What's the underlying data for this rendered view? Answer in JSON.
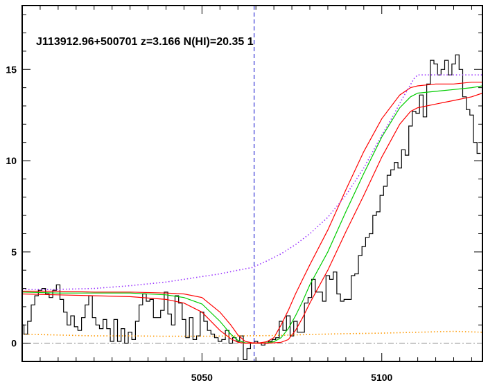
{
  "chart_data": {
    "type": "line",
    "title": "J113912.96+500701 z=3.166 N(HI)=20.35 1",
    "xlabel": "",
    "ylabel": "",
    "xlim": [
      5000,
      5128
    ],
    "ylim": [
      -1,
      18.5
    ],
    "x_ticks": [
      5050,
      5100
    ],
    "y_ticks": [
      0,
      5,
      10,
      15
    ],
    "grid": false,
    "vline": {
      "x": 5064.5,
      "color": "#0000cc",
      "style": "dashed"
    },
    "zero_line": {
      "y": 0,
      "color": "#888888",
      "style": "dash-dot"
    },
    "series": [
      {
        "type": "step",
        "color": "#000000",
        "x": [
          5000,
          5001,
          5002,
          5003,
          5004,
          5005,
          5006,
          5007,
          5008,
          5009,
          5010,
          5011,
          5012,
          5013,
          5014,
          5015,
          5016,
          5017,
          5018,
          5019,
          5020,
          5021,
          5022,
          5023,
          5024,
          5025,
          5026,
          5027,
          5028,
          5029,
          5030,
          5031,
          5032,
          5033,
          5034,
          5035,
          5036,
          5037,
          5038,
          5039,
          5040,
          5041,
          5042,
          5043,
          5044,
          5045,
          5046,
          5047,
          5048,
          5049,
          5050,
          5051,
          5052,
          5053,
          5054,
          5055,
          5056,
          5057,
          5058,
          5059,
          5060,
          5061,
          5062,
          5063,
          5064,
          5065,
          5066,
          5067,
          5068,
          5069,
          5070,
          5071,
          5072,
          5073,
          5074,
          5075,
          5076,
          5077,
          5078,
          5079,
          5080,
          5081,
          5082,
          5083,
          5084,
          5085,
          5086,
          5087,
          5088,
          5089,
          5090,
          5091,
          5092,
          5093,
          5094,
          5095,
          5096,
          5097,
          5098,
          5099,
          5100,
          5101,
          5102,
          5103,
          5104,
          5105,
          5106,
          5107,
          5108,
          5109,
          5110,
          5111,
          5112,
          5113,
          5114,
          5115,
          5116,
          5117,
          5118,
          5119,
          5120,
          5121,
          5122,
          5123,
          5124,
          5125,
          5126,
          5127
        ],
        "values": [
          1.0,
          0.5,
          1.2,
          2.1,
          2.6,
          2.9,
          3.0,
          2.7,
          2.5,
          2.9,
          3.2,
          2.4,
          1.7,
          1.0,
          1.5,
          0.9,
          0.7,
          1.4,
          2.1,
          2.6,
          1.4,
          1.0,
          0.8,
          1.3,
          0.8,
          0.1,
          1.3,
          0.1,
          0.8,
          0.0,
          0.6,
          0.2,
          1.2,
          2.1,
          2.7,
          2.3,
          2.4,
          1.4,
          1.4,
          1.8,
          2.8,
          1.6,
          1.0,
          2.6,
          2.2,
          1.3,
          0.3,
          1.4,
          0.2,
          0.4,
          1.7,
          1.2,
          0.7,
          0.5,
          0.3,
          0.1,
          0.2,
          0.7,
          0.0,
          0.3,
          0.1,
          0.4,
          -0.9,
          -0.3,
          0.0,
          0.1,
          0.0,
          -0.1,
          0.0,
          0.1,
          0.2,
          0.3,
          1.2,
          0.7,
          1.5,
          0.4,
          1.2,
          0.6,
          0.6,
          2.2,
          2.5,
          3.5,
          2.8,
          2.8,
          2.3,
          3.7,
          3.5,
          3.9,
          2.7,
          2.3,
          2.4,
          2.4,
          3.7,
          3.8,
          4.8,
          5.3,
          5.8,
          6.0,
          7.0,
          7.2,
          8.1,
          8.6,
          9.2,
          9.5,
          9.9,
          9.6,
          10.6,
          10.3,
          11.9,
          12.7,
          12.6,
          13.6,
          12.4,
          14.2,
          15.5,
          15.3,
          14.7,
          15.0,
          15.5,
          14.7,
          15.3,
          15.8,
          15.0,
          13.5,
          12.8,
          12.5,
          11.0,
          10.4
        ]
      },
      {
        "type": "line",
        "color": "#00cc00",
        "x": [
          5000,
          5010,
          5020,
          5030,
          5040,
          5045,
          5050,
          5055,
          5058,
          5060,
          5062,
          5064,
          5066,
          5068,
          5070,
          5072,
          5074,
          5076,
          5078,
          5080,
          5085,
          5090,
          5095,
          5100,
          5105,
          5108,
          5110,
          5115,
          5120,
          5125,
          5128
        ],
        "values": [
          2.8,
          2.75,
          2.75,
          2.75,
          2.65,
          2.5,
          2.15,
          1.2,
          0.5,
          0.15,
          0.02,
          0.0,
          0.0,
          0.02,
          0.08,
          0.3,
          0.8,
          1.5,
          2.3,
          3.2,
          5.0,
          7.2,
          9.3,
          11.3,
          12.9,
          13.5,
          13.7,
          13.8,
          13.9,
          14.0,
          14.1
        ]
      },
      {
        "type": "line",
        "color": "#ff0000",
        "x": [
          5000,
          5010,
          5020,
          5030,
          5040,
          5045,
          5050,
          5055,
          5058,
          5060,
          5062,
          5064,
          5066,
          5068,
          5070,
          5072,
          5074,
          5076,
          5078,
          5080,
          5085,
          5090,
          5095,
          5100,
          5105,
          5108,
          5110,
          5115,
          5120,
          5125,
          5128
        ],
        "values": [
          2.85,
          2.85,
          2.8,
          2.8,
          2.75,
          2.7,
          2.5,
          1.7,
          1.0,
          0.45,
          0.1,
          0.02,
          0.02,
          0.08,
          0.3,
          1.0,
          1.8,
          2.7,
          3.5,
          4.3,
          6.2,
          8.4,
          10.5,
          12.3,
          13.6,
          14.0,
          14.1,
          14.2,
          14.2,
          14.3,
          14.3
        ]
      },
      {
        "type": "line",
        "color": "#ff0000",
        "x": [
          5000,
          5010,
          5020,
          5030,
          5040,
          5045,
          5050,
          5055,
          5058,
          5060,
          5062,
          5064,
          5066,
          5068,
          5070,
          5072,
          5074,
          5076,
          5078,
          5080,
          5085,
          5090,
          5095,
          5100,
          5105,
          5108,
          5110,
          5115,
          5120,
          5125,
          5128
        ],
        "values": [
          2.7,
          2.65,
          2.6,
          2.55,
          2.4,
          2.2,
          1.7,
          0.7,
          0.25,
          0.05,
          0.0,
          0.0,
          0.0,
          0.0,
          0.02,
          0.05,
          0.2,
          0.7,
          1.4,
          2.2,
          4.0,
          6.1,
          8.1,
          10.2,
          12.0,
          12.7,
          12.9,
          13.1,
          13.3,
          13.5,
          13.7
        ]
      },
      {
        "type": "line",
        "color": "#9933ff",
        "style": "dotted",
        "x": [
          5000,
          5010,
          5020,
          5030,
          5040,
          5045,
          5050,
          5055,
          5060,
          5064,
          5068,
          5072,
          5076,
          5080,
          5085,
          5090,
          5095,
          5100,
          5103,
          5106,
          5109,
          5110,
          5115,
          5120,
          5125,
          5128
        ],
        "values": [
          2.95,
          2.95,
          3.0,
          3.15,
          3.35,
          3.5,
          3.65,
          3.8,
          4.0,
          4.15,
          4.5,
          4.9,
          5.4,
          6.0,
          6.9,
          8.1,
          9.6,
          11.4,
          12.4,
          13.5,
          14.5,
          14.7,
          14.7,
          14.7,
          14.7,
          14.7
        ]
      },
      {
        "type": "line",
        "color": "#ff9900",
        "style": "dotted",
        "x": [
          5000,
          5010,
          5020,
          5030,
          5040,
          5050,
          5060,
          5070,
          5080,
          5090,
          5100,
          5110,
          5120,
          5128
        ],
        "values": [
          0.5,
          0.45,
          0.4,
          0.4,
          0.38,
          0.38,
          0.4,
          0.42,
          0.48,
          0.52,
          0.55,
          0.6,
          0.65,
          0.6
        ]
      }
    ]
  }
}
